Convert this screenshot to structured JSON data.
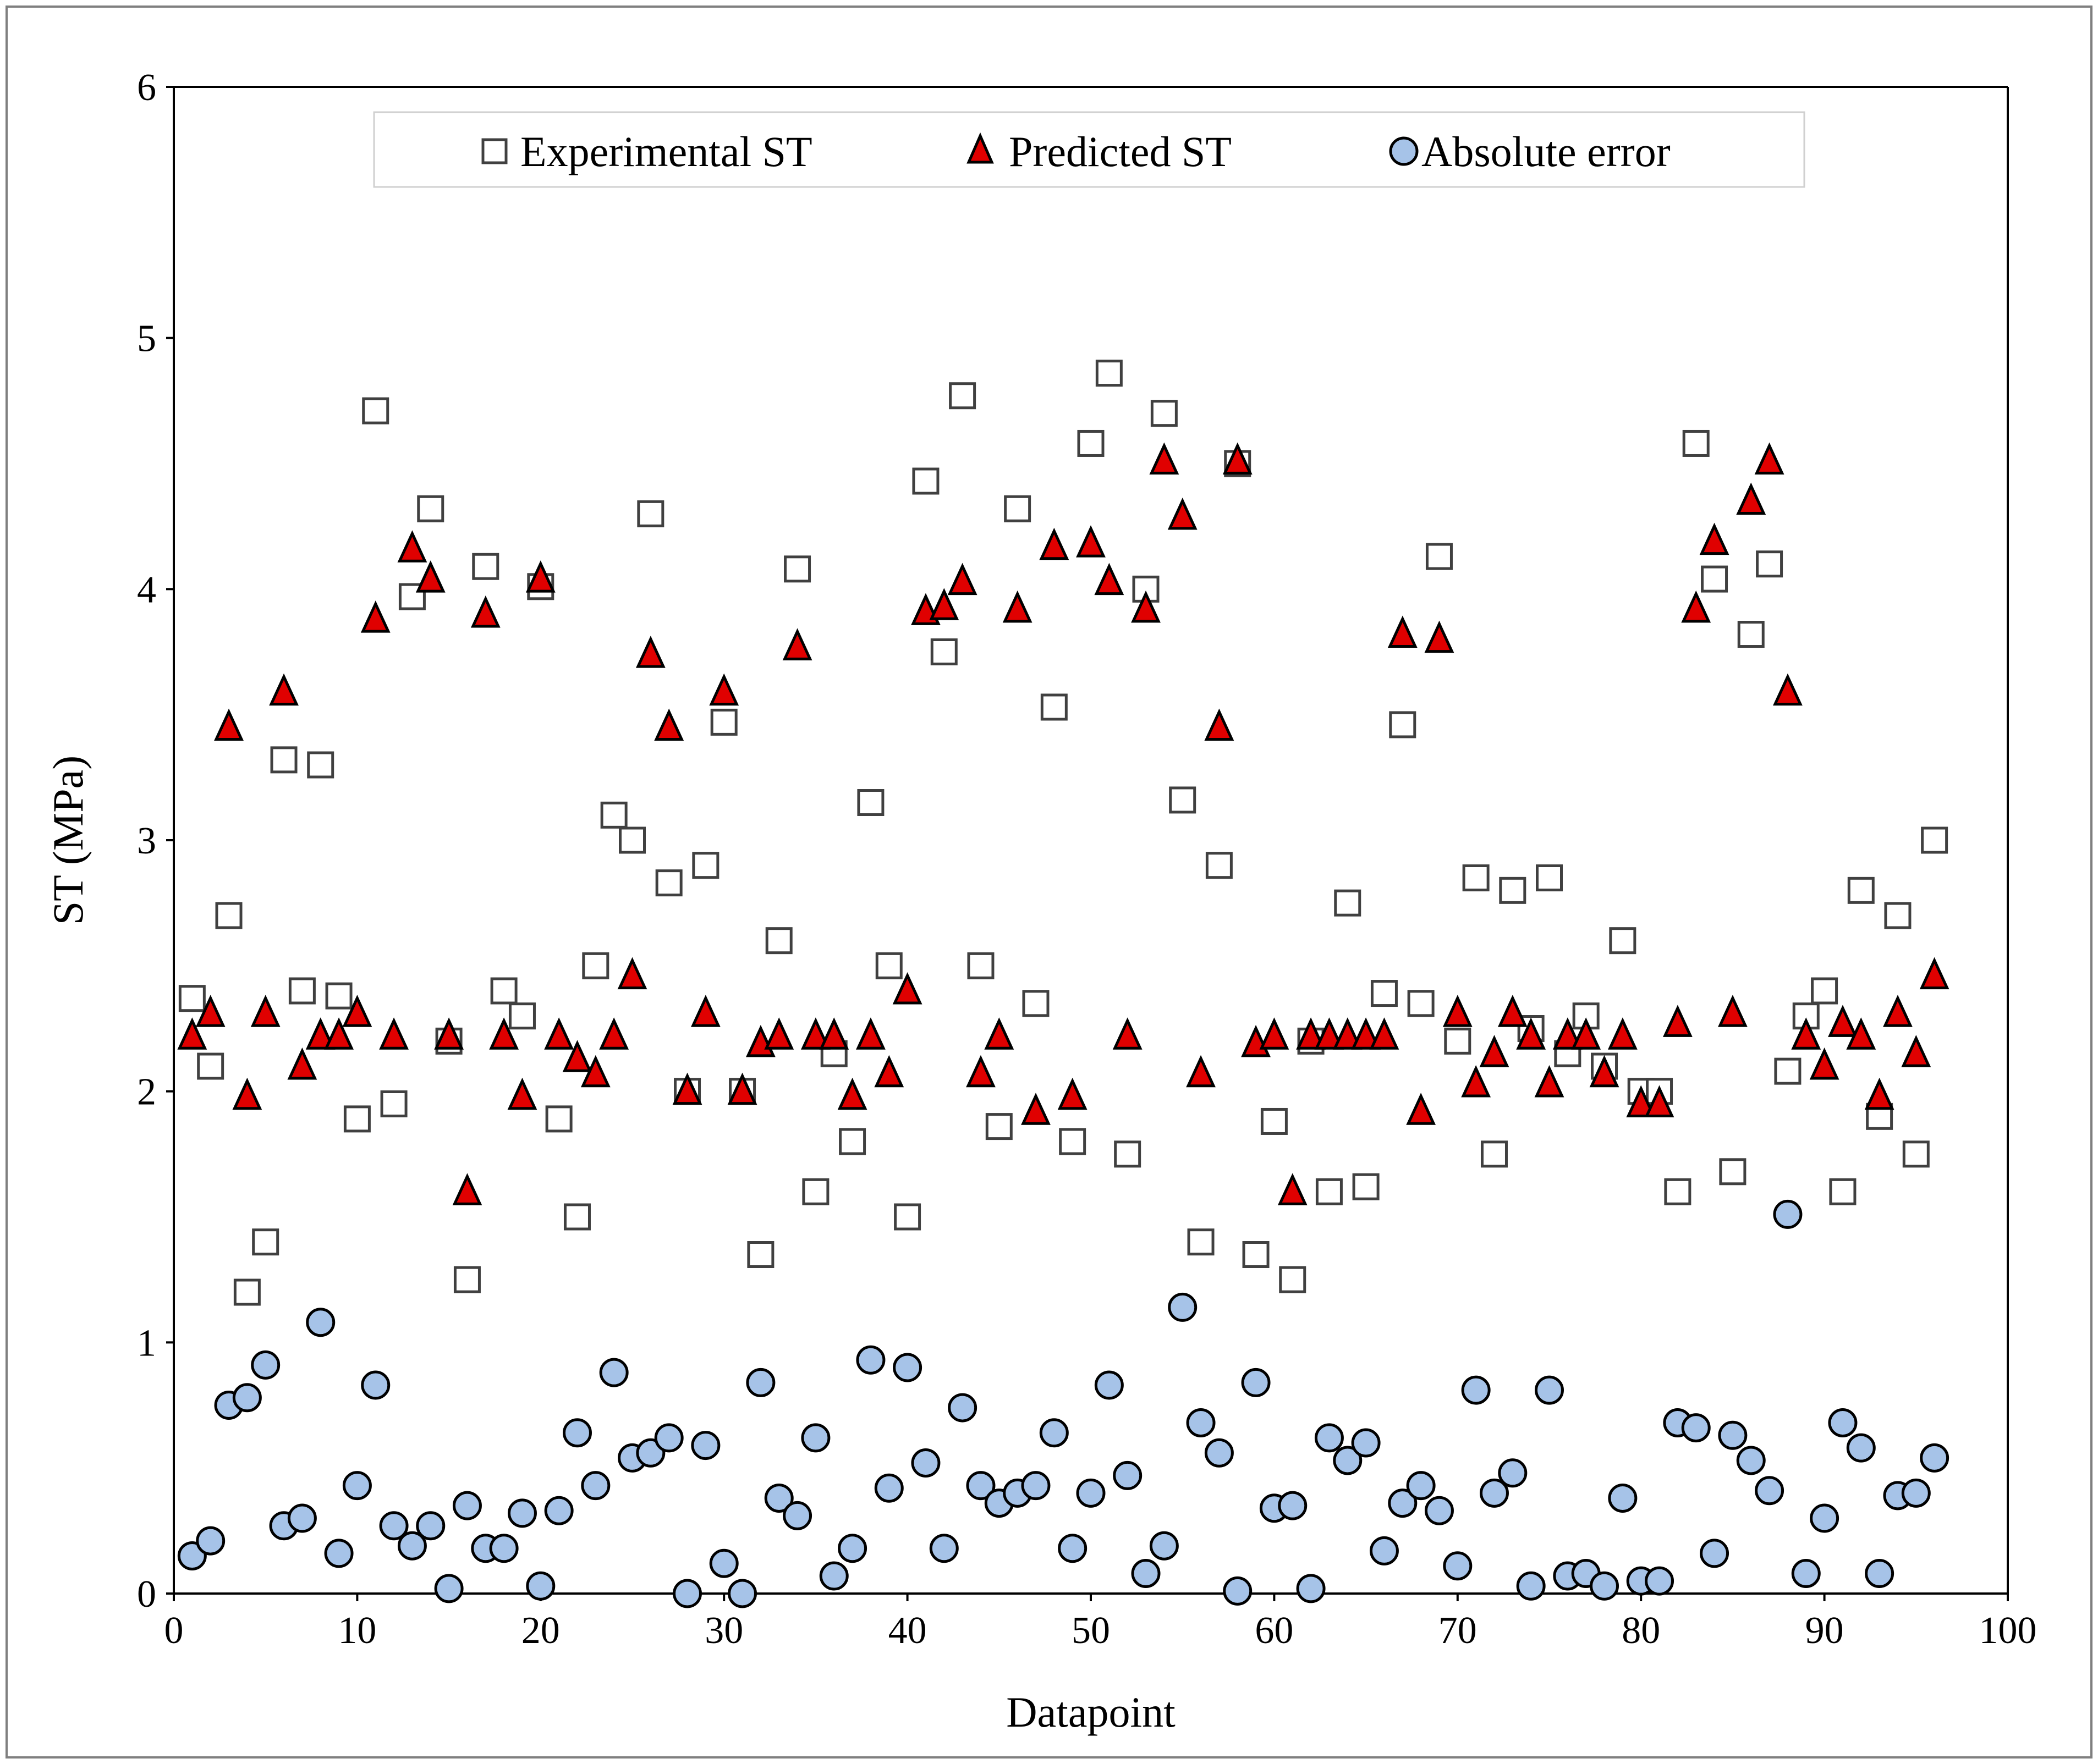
{
  "chart_data": {
    "type": "scatter",
    "title": "",
    "xlabel": "Datapoint",
    "ylabel": "ST (MPa)",
    "xlim": [
      0,
      100
    ],
    "ylim": [
      0,
      6
    ],
    "xticks": [
      0,
      10,
      20,
      30,
      40,
      50,
      60,
      70,
      80,
      90,
      100
    ],
    "yticks": [
      0,
      1,
      2,
      3,
      4,
      5,
      6
    ],
    "grid": false,
    "legend_position": "top-center",
    "x": [
      1,
      2,
      3,
      4,
      5,
      6,
      7,
      8,
      9,
      10,
      11,
      12,
      13,
      14,
      15,
      16,
      17,
      18,
      19,
      20,
      21,
      22,
      23,
      24,
      25,
      26,
      27,
      28,
      29,
      30,
      31,
      32,
      33,
      34,
      35,
      36,
      37,
      38,
      39,
      40,
      41,
      42,
      43,
      44,
      45,
      46,
      47,
      48,
      49,
      50,
      51,
      52,
      53,
      54,
      55,
      56,
      57,
      58,
      59,
      60,
      61,
      62,
      63,
      64,
      65,
      66,
      67,
      68,
      69,
      70,
      71,
      72,
      73,
      74,
      75,
      76,
      77,
      78,
      79,
      80,
      81,
      82,
      83,
      84,
      85,
      86,
      87,
      88,
      89,
      90,
      91,
      92,
      93,
      94,
      95,
      96
    ],
    "series": [
      {
        "name": "Experimental ST",
        "marker": "square",
        "values": [
          2.37,
          2.1,
          2.7,
          1.2,
          1.4,
          3.32,
          2.4,
          3.3,
          2.38,
          1.89,
          4.71,
          1.95,
          3.97,
          4.32,
          2.2,
          1.25,
          4.09,
          2.4,
          2.3,
          4.01,
          1.89,
          1.5,
          2.5,
          3.1,
          3.0,
          4.3,
          2.83,
          2.0,
          2.9,
          3.47,
          2.0,
          1.35,
          2.6,
          4.08,
          1.6,
          2.15,
          1.8,
          3.15,
          2.5,
          1.5,
          4.43,
          3.75,
          4.77,
          2.5,
          1.86,
          4.32,
          2.35,
          3.53,
          1.8,
          4.58,
          4.86,
          1.75,
          4.0,
          4.7,
          3.16,
          1.4,
          2.9,
          4.5,
          1.35,
          1.88,
          1.25,
          2.2,
          1.6,
          2.75,
          1.62,
          2.39,
          3.46,
          2.35,
          4.13,
          2.2,
          2.85,
          1.75,
          2.8,
          2.25,
          2.85,
          2.15,
          2.3,
          2.1,
          2.6,
          2.0,
          2.0,
          1.6,
          4.58,
          4.04,
          1.68,
          3.82,
          4.1,
          2.08,
          2.3,
          2.4,
          1.6,
          2.8,
          1.9,
          2.7,
          1.75,
          3.0
        ]
      },
      {
        "name": "Predicted ST",
        "marker": "triangle",
        "values": [
          2.22,
          2.31,
          3.45,
          1.98,
          2.31,
          3.59,
          2.1,
          2.22,
          2.22,
          2.31,
          3.88,
          2.22,
          4.16,
          4.04,
          2.22,
          1.6,
          3.9,
          2.22,
          1.98,
          4.04,
          2.22,
          2.13,
          2.07,
          2.22,
          2.46,
          3.74,
          3.45,
          2.0,
          2.31,
          3.59,
          2.0,
          2.19,
          2.22,
          3.77,
          2.22,
          2.22,
          1.98,
          2.22,
          2.07,
          2.4,
          3.91,
          3.93,
          4.03,
          2.07,
          2.22,
          3.92,
          1.92,
          4.17,
          1.98,
          4.18,
          4.03,
          2.22,
          3.92,
          4.51,
          4.29,
          2.07,
          3.45,
          4.51,
          2.19,
          2.22,
          1.6,
          2.22,
          2.22,
          2.22,
          2.22,
          2.22,
          3.82,
          1.92,
          3.8,
          2.31,
          2.03,
          2.15,
          2.31,
          2.22,
          2.03,
          2.22,
          2.22,
          2.07,
          2.22,
          1.95,
          1.95,
          2.27,
          3.92,
          4.19,
          2.31,
          4.35,
          4.51,
          3.59,
          2.22,
          2.1,
          2.27,
          2.22,
          1.98,
          2.31,
          2.15,
          2.46
        ]
      },
      {
        "name": "Absolute error",
        "marker": "circle",
        "values": [
          0.15,
          0.21,
          0.75,
          0.78,
          0.91,
          0.27,
          0.3,
          1.08,
          0.16,
          0.43,
          0.83,
          0.27,
          0.19,
          0.27,
          0.02,
          0.35,
          0.18,
          0.18,
          0.32,
          0.03,
          0.33,
          0.64,
          0.43,
          0.88,
          0.54,
          0.56,
          0.62,
          0.0,
          0.59,
          0.12,
          0.0,
          0.84,
          0.38,
          0.31,
          0.62,
          0.07,
          0.18,
          0.93,
          0.42,
          0.9,
          0.52,
          0.18,
          0.74,
          0.43,
          0.36,
          0.4,
          0.43,
          0.64,
          0.18,
          0.4,
          0.83,
          0.47,
          0.08,
          0.19,
          1.14,
          0.68,
          0.56,
          0.01,
          0.84,
          0.34,
          0.35,
          0.02,
          0.62,
          0.53,
          0.6,
          0.17,
          0.36,
          0.43,
          0.33,
          0.11,
          0.81,
          0.4,
          0.48,
          0.03,
          0.81,
          0.07,
          0.08,
          0.03,
          0.38,
          0.05,
          0.05,
          0.68,
          0.66,
          0.16,
          0.63,
          0.53,
          0.41,
          1.51,
          0.08,
          0.3,
          0.68,
          0.58,
          0.08,
          0.39,
          0.4,
          0.54
        ]
      }
    ],
    "colors": {
      "square_fill": "#ffffff",
      "square_stroke": "#404040",
      "triangle_fill": "#e00000",
      "triangle_stroke": "#000000",
      "circle_fill": "#a6c3e8",
      "circle_stroke": "#000000"
    }
  }
}
